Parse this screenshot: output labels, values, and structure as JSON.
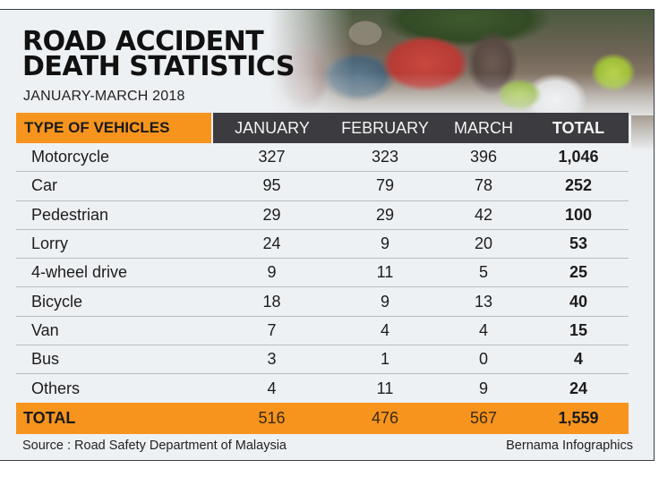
{
  "header": {
    "title_line1": "ROAD ACCIDENT",
    "title_line2": "DEATH STATISTICS",
    "subtitle": "JANUARY-MARCH 2018"
  },
  "table": {
    "columns": [
      "TYPE OF VEHICLES",
      "JANUARY",
      "FEBRUARY",
      "MARCH",
      "TOTAL"
    ],
    "rows": [
      {
        "label": "Motorcycle",
        "jan": "327",
        "feb": "323",
        "mar": "396",
        "total": "1,046"
      },
      {
        "label": "Car",
        "jan": "95",
        "feb": "79",
        "mar": "78",
        "total": "252"
      },
      {
        "label": "Pedestrian",
        "jan": "29",
        "feb": "29",
        "mar": "42",
        "total": "100"
      },
      {
        "label": "Lorry",
        "jan": "24",
        "feb": "9",
        "mar": "20",
        "total": "53"
      },
      {
        "label": "4-wheel drive",
        "jan": "9",
        "feb": "11",
        "mar": "5",
        "total": "25"
      },
      {
        "label": "Bicycle",
        "jan": "18",
        "feb": "9",
        "mar": "13",
        "total": "40"
      },
      {
        "label": "Van",
        "jan": "7",
        "feb": "4",
        "mar": "4",
        "total": "15"
      },
      {
        "label": "Bus",
        "jan": "3",
        "feb": "1",
        "mar": "0",
        "total": "4"
      },
      {
        "label": "Others",
        "jan": "4",
        "feb": "11",
        "mar": "9",
        "total": "24"
      }
    ],
    "total_row": {
      "label": "TOTAL",
      "jan": "516",
      "feb": "476",
      "mar": "567",
      "total": "1,559"
    }
  },
  "footer": {
    "source": "Source : Road Safety Department of Malaysia",
    "credit": "Bernama Infographics"
  },
  "colors": {
    "accent_orange": "#f7941d",
    "header_dark": "#3b3b40",
    "background": "#eef1f4"
  },
  "chart_data": {
    "type": "table",
    "title": "ROAD ACCIDENT DEATH STATISTICS",
    "subtitle": "JANUARY-MARCH 2018",
    "categories": [
      "Motorcycle",
      "Car",
      "Pedestrian",
      "Lorry",
      "4-wheel drive",
      "Bicycle",
      "Van",
      "Bus",
      "Others"
    ],
    "series": [
      {
        "name": "JANUARY",
        "values": [
          327,
          95,
          29,
          24,
          9,
          18,
          7,
          3,
          4
        ]
      },
      {
        "name": "FEBRUARY",
        "values": [
          323,
          79,
          29,
          9,
          11,
          9,
          4,
          1,
          11
        ]
      },
      {
        "name": "MARCH",
        "values": [
          396,
          78,
          42,
          20,
          5,
          13,
          4,
          0,
          9
        ]
      },
      {
        "name": "TOTAL",
        "values": [
          1046,
          252,
          100,
          53,
          25,
          40,
          15,
          4,
          24
        ]
      }
    ],
    "totals": {
      "JANUARY": 516,
      "FEBRUARY": 476,
      "MARCH": 567,
      "TOTAL": 1559
    },
    "source": "Source : Road Safety Department of Malaysia",
    "credit": "Bernama Infographics"
  }
}
